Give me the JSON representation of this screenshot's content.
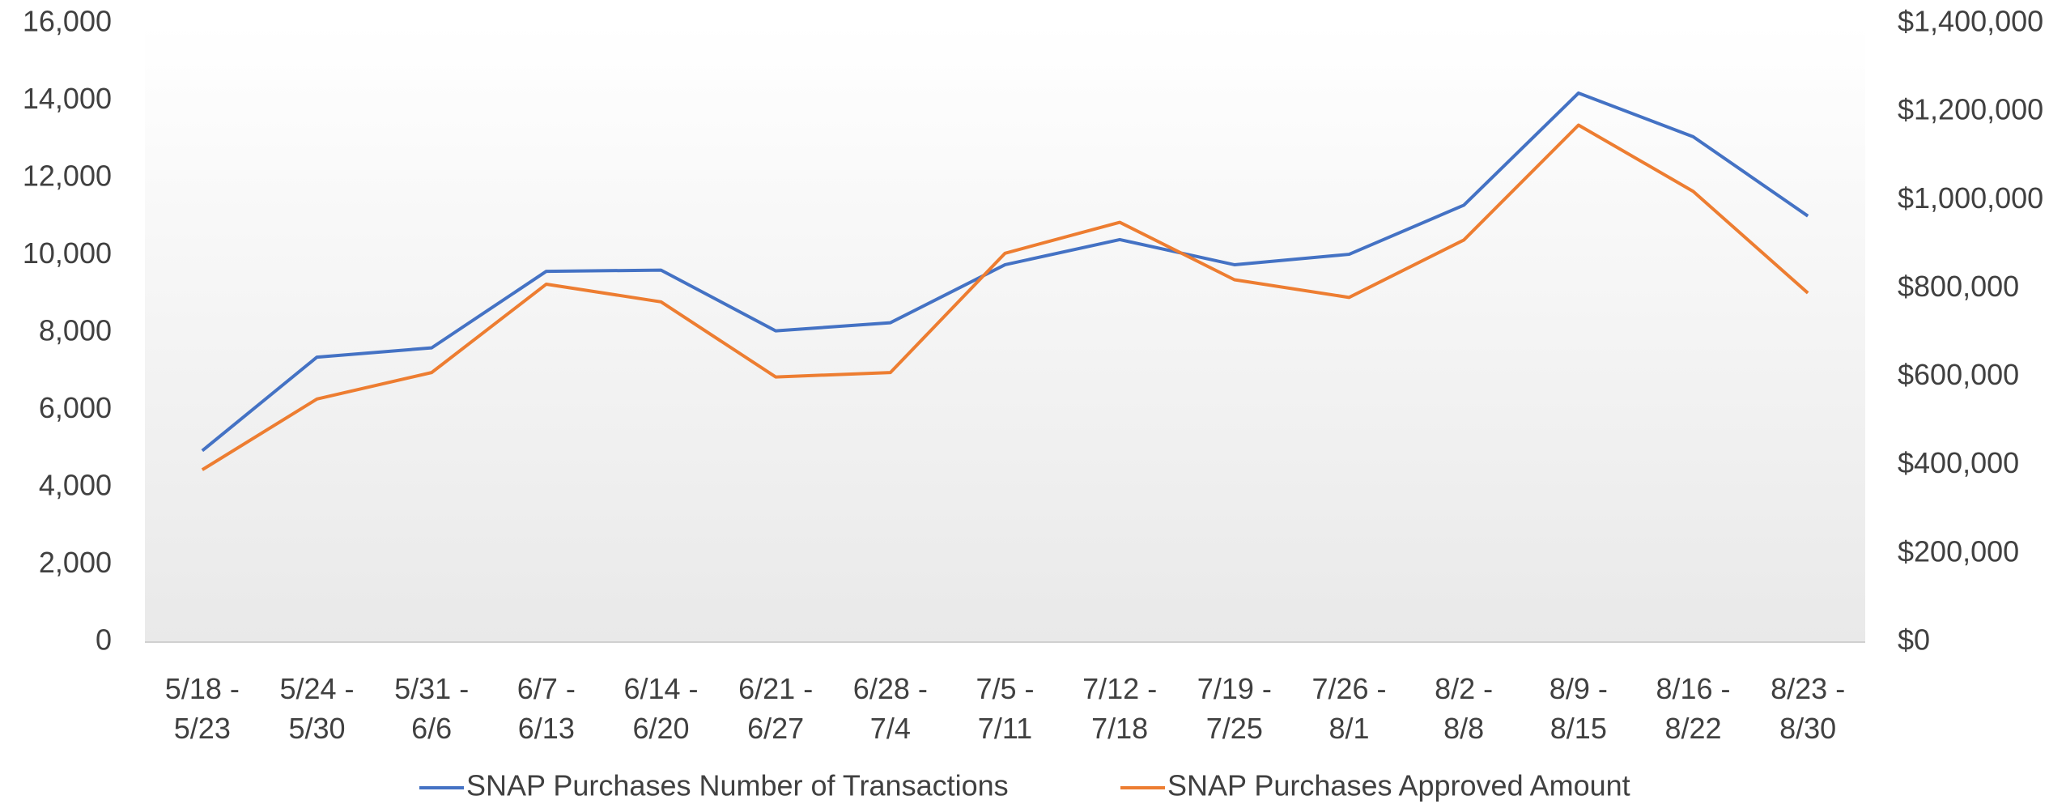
{
  "chart_data": {
    "type": "line",
    "categories": [
      "5/18 - 5/23",
      "5/24 - 5/30",
      "5/31 - 6/6",
      "6/7 - 6/13",
      "6/14 - 6/20",
      "6/21 - 6/27",
      "6/28 - 7/4",
      "7/5 - 7/11",
      "7/12 - 7/18",
      "7/19 - 7/25",
      "7/26 - 8/1",
      "8/2 - 8/8",
      "8/9 - 8/15",
      "8/16 - 8/22",
      "8/23 - 8/30"
    ],
    "series": [
      {
        "name": "SNAP Purchases Number of Transactions",
        "color": "#4472c4",
        "values": [
          4950,
          7370,
          7610,
          9590,
          9620,
          8050,
          8260,
          9760,
          10410,
          9760,
          10030,
          11300,
          14200,
          13070,
          11020
        ]
      },
      {
        "name": "SNAP Purchases Approved Amount",
        "color": "#ed7d31",
        "axis": "y2",
        "values": [
          390000,
          550000,
          610000,
          810000,
          770000,
          600000,
          610000,
          880000,
          950000,
          820000,
          780000,
          910000,
          1170000,
          1020000,
          790000
        ]
      }
    ],
    "ylim": [
      0,
      16000
    ],
    "yticks": [
      0,
      {
        "value": 2000,
        "label": "2,000"
      },
      {
        "value": 4000,
        "label": "4,000"
      },
      {
        "value": 6000,
        "label": "6,000"
      },
      {
        "value": 8000,
        "label": "8,000"
      },
      {
        "value": 10000,
        "label": "10,000"
      },
      {
        "value": 12000,
        "label": "12,000"
      },
      {
        "value": 14000,
        "label": "14,000"
      },
      {
        "value": 16000,
        "label": "16,000"
      }
    ],
    "y2lim": [
      0,
      1400000
    ],
    "y2ticks": [
      {
        "value": 0,
        "label": "$0"
      },
      {
        "value": 200000,
        "label": "$200,000"
      },
      {
        "value": 400000,
        "label": "$400,000"
      },
      {
        "value": 600000,
        "label": "$600,000"
      },
      {
        "value": 800000,
        "label": "$800,000"
      },
      {
        "value": 1000000,
        "label": "$1,000,000"
      },
      {
        "value": 1200000,
        "label": "$1,200,000"
      },
      {
        "value": 1400000,
        "label": "$1,400,000"
      }
    ],
    "grid": false,
    "legend": "bottom"
  }
}
